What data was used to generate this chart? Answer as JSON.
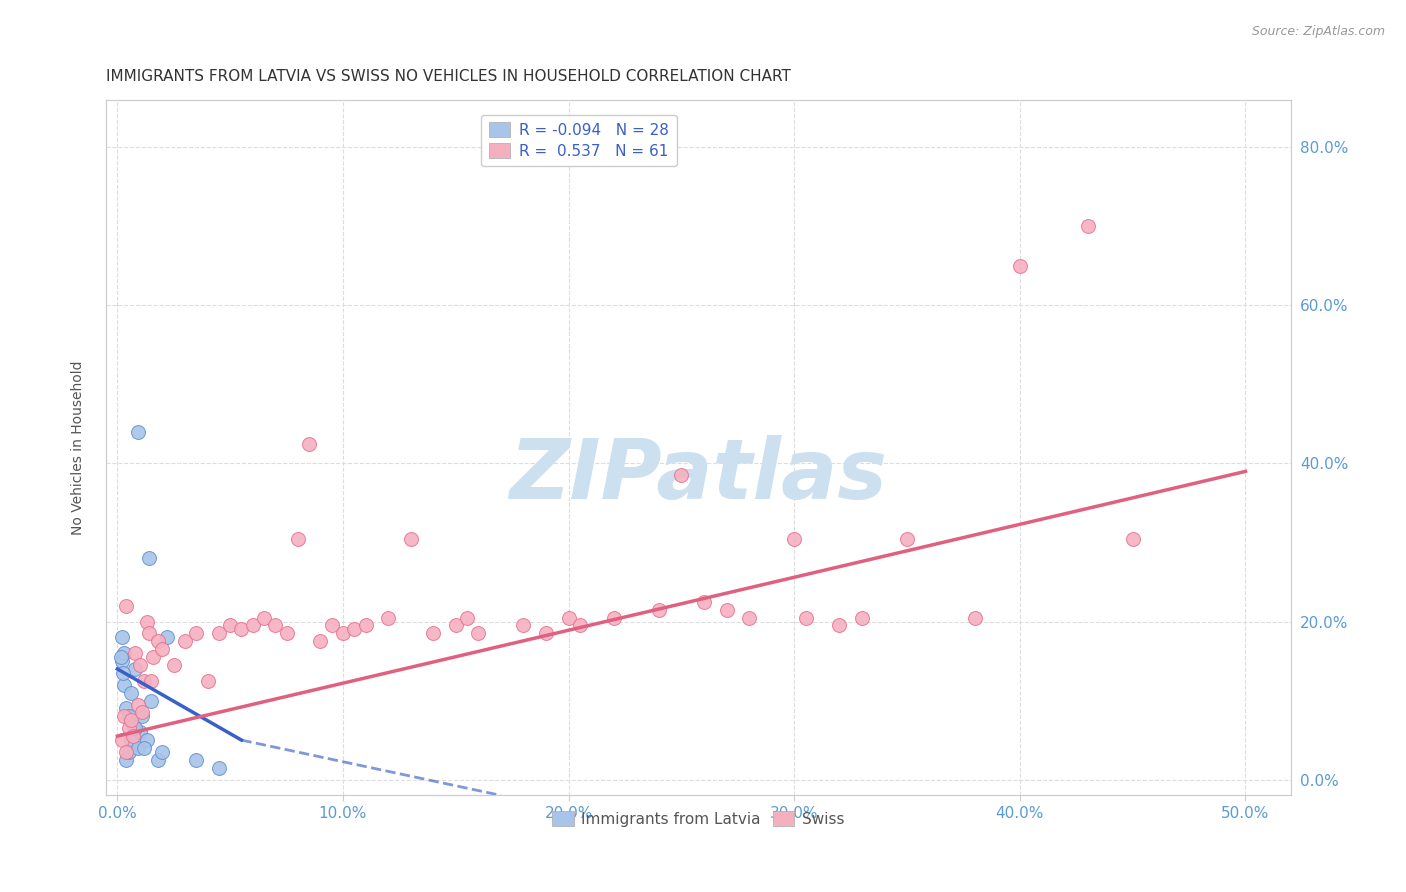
{
  "title": "IMMIGRANTS FROM LATVIA VS SWISS NO VEHICLES IN HOUSEHOLD CORRELATION CHART",
  "source": "Source: ZipAtlas.com",
  "xlabel_vals": [
    0.0,
    10.0,
    20.0,
    30.0,
    40.0,
    50.0
  ],
  "ylabel_vals": [
    0.0,
    20.0,
    40.0,
    60.0,
    80.0
  ],
  "xlim": [
    -0.5,
    52.0
  ],
  "ylim": [
    -2.0,
    86.0
  ],
  "ylabel": "No Vehicles in Household",
  "legend_entries": [
    "Immigrants from Latvia",
    "Swiss"
  ],
  "R_latvia": -0.094,
  "N_latvia": 28,
  "R_swiss": 0.537,
  "N_swiss": 61,
  "blue_color": "#a8c4e8",
  "blue_edge_color": "#6090d0",
  "blue_line_color": "#3a5fc8",
  "pink_color": "#f5b0c0",
  "pink_edge_color": "#e87090",
  "pink_line_color": "#e06080",
  "blue_scatter": [
    [
      0.2,
      15.0
    ],
    [
      0.3,
      16.0
    ],
    [
      0.4,
      2.5
    ],
    [
      0.5,
      3.5
    ],
    [
      0.6,
      5.0
    ],
    [
      0.7,
      7.0
    ],
    [
      0.8,
      14.0
    ],
    [
      0.9,
      4.0
    ],
    [
      1.0,
      6.0
    ],
    [
      1.1,
      8.0
    ],
    [
      1.3,
      5.0
    ],
    [
      1.5,
      10.0
    ],
    [
      1.8,
      2.5
    ],
    [
      2.0,
      3.5
    ],
    [
      0.9,
      44.0
    ],
    [
      1.4,
      28.0
    ],
    [
      2.2,
      18.0
    ],
    [
      3.5,
      2.5
    ],
    [
      0.3,
      12.0
    ],
    [
      0.4,
      9.0
    ],
    [
      0.6,
      11.0
    ],
    [
      0.8,
      6.5
    ],
    [
      1.2,
      4.0
    ],
    [
      0.5,
      8.0
    ],
    [
      4.5,
      1.5
    ],
    [
      0.2,
      18.0
    ],
    [
      0.15,
      15.5
    ],
    [
      0.25,
      13.5
    ]
  ],
  "pink_scatter": [
    [
      0.2,
      5.0
    ],
    [
      0.3,
      8.0
    ],
    [
      0.4,
      3.5
    ],
    [
      0.5,
      6.5
    ],
    [
      0.6,
      7.5
    ],
    [
      0.7,
      5.5
    ],
    [
      0.8,
      16.0
    ],
    [
      0.9,
      9.5
    ],
    [
      1.0,
      14.5
    ],
    [
      1.1,
      8.5
    ],
    [
      1.2,
      12.5
    ],
    [
      1.3,
      20.0
    ],
    [
      1.4,
      18.5
    ],
    [
      1.5,
      12.5
    ],
    [
      1.6,
      15.5
    ],
    [
      1.8,
      17.5
    ],
    [
      2.0,
      16.5
    ],
    [
      2.5,
      14.5
    ],
    [
      3.0,
      17.5
    ],
    [
      3.5,
      18.5
    ],
    [
      4.0,
      12.5
    ],
    [
      4.5,
      18.5
    ],
    [
      5.0,
      19.5
    ],
    [
      5.5,
      19.0
    ],
    [
      6.0,
      19.5
    ],
    [
      6.5,
      20.5
    ],
    [
      7.0,
      19.5
    ],
    [
      7.5,
      18.5
    ],
    [
      8.0,
      30.5
    ],
    [
      8.5,
      42.5
    ],
    [
      9.0,
      17.5
    ],
    [
      9.5,
      19.5
    ],
    [
      10.0,
      18.5
    ],
    [
      10.5,
      19.0
    ],
    [
      11.0,
      19.5
    ],
    [
      12.0,
      20.5
    ],
    [
      13.0,
      30.5
    ],
    [
      14.0,
      18.5
    ],
    [
      15.0,
      19.5
    ],
    [
      15.5,
      20.5
    ],
    [
      16.0,
      18.5
    ],
    [
      18.0,
      19.5
    ],
    [
      19.0,
      18.5
    ],
    [
      20.0,
      20.5
    ],
    [
      20.5,
      19.5
    ],
    [
      22.0,
      20.5
    ],
    [
      24.0,
      21.5
    ],
    [
      25.0,
      38.5
    ],
    [
      26.0,
      22.5
    ],
    [
      27.0,
      21.5
    ],
    [
      28.0,
      20.5
    ],
    [
      30.0,
      30.5
    ],
    [
      30.5,
      20.5
    ],
    [
      32.0,
      19.5
    ],
    [
      33.0,
      20.5
    ],
    [
      35.0,
      30.5
    ],
    [
      38.0,
      20.5
    ],
    [
      40.0,
      65.0
    ],
    [
      43.0,
      70.0
    ],
    [
      45.0,
      30.5
    ],
    [
      0.4,
      22.0
    ]
  ],
  "blue_line_x0": 0.0,
  "blue_line_x1": 5.5,
  "blue_line_y0": 14.0,
  "blue_line_y1": 5.0,
  "blue_dash_x0": 5.5,
  "blue_dash_x1": 17.0,
  "blue_dash_y0": 5.0,
  "blue_dash_y1": -2.0,
  "pink_line_x0": 0.0,
  "pink_line_x1": 50.0,
  "pink_line_y0": 5.5,
  "pink_line_y1": 39.0,
  "watermark_text": "ZIPatlas",
  "watermark_color": "#cce0f0",
  "background_color": "#ffffff",
  "grid_color": "#dddddd",
  "title_color": "#333333",
  "axis_tick_color": "#5b9bd5",
  "ylabel_color": "#555555"
}
